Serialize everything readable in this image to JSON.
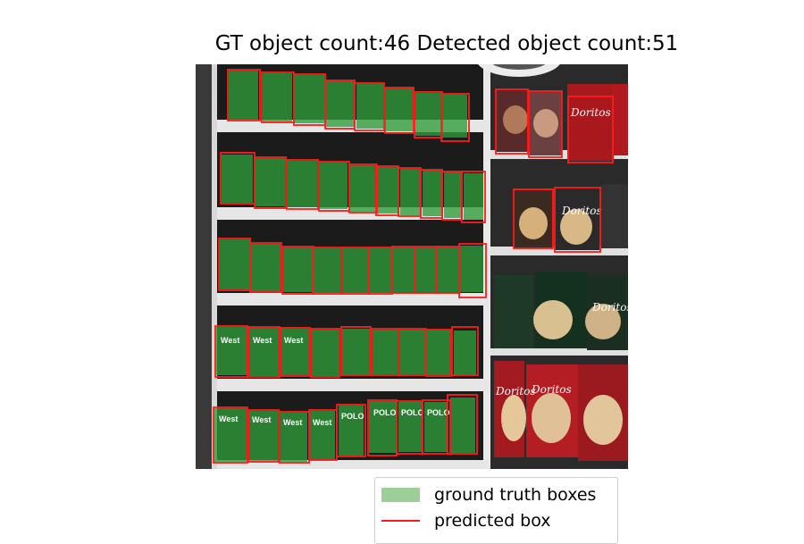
{
  "figure": {
    "title": "GT object count:46 Detected object count:51"
  },
  "legend": {
    "gt_label": "ground truth boxes",
    "pred_label": "predicted box",
    "gt_color": "#9ccf98",
    "pred_color": "#ff1a1a"
  },
  "colors": {
    "ground_truth_fill": "#2e9b3a",
    "predicted_box_stroke": "#ff1a1a",
    "shelf": "#e6e6e6",
    "back_wall": "#202020"
  },
  "package_labels": [
    "West",
    "POLO",
    "Doritos"
  ]
}
